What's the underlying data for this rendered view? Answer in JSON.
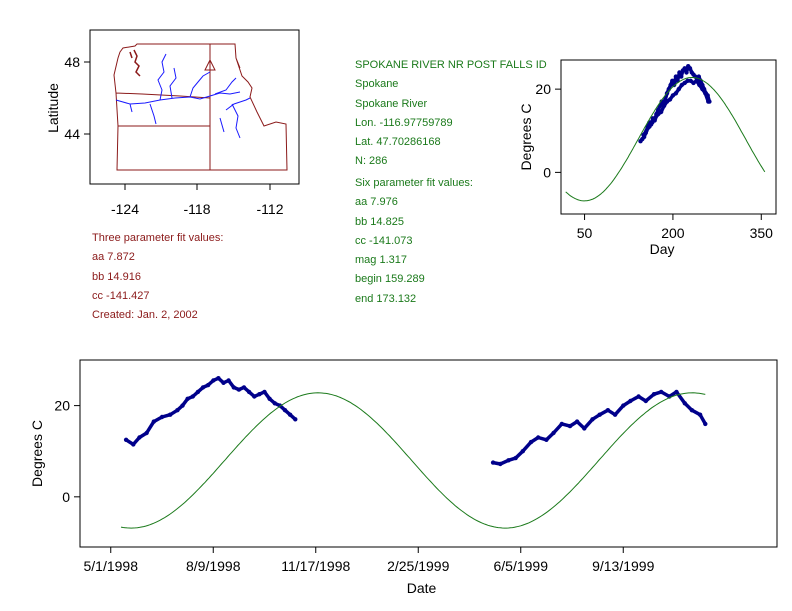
{
  "colors": {
    "axis": "#000000",
    "observed": "#00008b",
    "fit": "#1b7a1b",
    "map_border": "#8b1a1a",
    "map_river": "#1a1aff",
    "green_text": "#1b7a1b",
    "maroon_text": "#8b1a1a"
  },
  "station": {
    "name": "SPOKANE RIVER NR POST FALLS ID",
    "city": "Spokane",
    "river": "Spokane River",
    "lon": "Lon. -116.97759789",
    "lat": "Lat. 47.70286168",
    "n": "N: 286"
  },
  "six_param": {
    "heading": "Six parameter fit values:",
    "aa": "aa 7.976",
    "bb": "bb 14.825",
    "cc": "cc -141.073",
    "mag": "mag 1.317",
    "begin": "begin 159.289",
    "end": "end 173.132"
  },
  "three_param": {
    "heading": "Three parameter fit values:",
    "aa": "aa 7.872",
    "bb": "bb 14.916",
    "cc": "cc -141.427",
    "created": "Created:   Jan. 2, 2002"
  },
  "map": {
    "ylabel": "Latitude",
    "xticks": [
      "-124",
      "-118",
      "-112"
    ],
    "yticks": [
      "48",
      "44"
    ]
  },
  "chart_data": [
    {
      "type": "line",
      "title": "",
      "xlabel": "Day",
      "ylabel": "Degrees C",
      "xlim": [
        10,
        375
      ],
      "ylim": [
        -10,
        27
      ],
      "xticks": [
        50,
        200,
        350
      ],
      "yticks": [
        0,
        20
      ],
      "tick_labels_x": [
        "50",
        "200",
        "350"
      ],
      "tick_labels_y": [
        "0",
        "20"
      ],
      "series": [
        {
          "name": "observed",
          "style": "points",
          "x": [
            145,
            148,
            151,
            154,
            157,
            160,
            163,
            166,
            169,
            172,
            175,
            178,
            181,
            184,
            187,
            190,
            193,
            196,
            199,
            202,
            205,
            208,
            211,
            214,
            217,
            220,
            223,
            226,
            229,
            232,
            235,
            238,
            241,
            244,
            247,
            250,
            253,
            256,
            259,
            262
          ],
          "y": [
            7.5,
            8.0,
            8.5,
            9.5,
            11,
            12,
            11.5,
            13,
            12.5,
            14,
            15,
            16,
            17,
            16.5,
            17.5,
            19,
            20,
            21,
            22,
            21,
            23,
            22,
            24,
            23,
            24.5,
            25,
            24,
            25.5,
            25,
            24,
            23.5,
            23,
            22.5,
            23,
            22,
            21,
            20,
            19,
            18.5,
            17
          ]
        },
        {
          "name": "observed (second year)",
          "style": "points",
          "x": [
            150,
            155,
            160,
            165,
            170,
            175,
            180,
            185,
            190,
            195,
            200,
            205,
            210,
            215,
            220,
            225,
            230,
            235,
            240,
            245,
            250,
            255,
            260
          ],
          "y": [
            9,
            10,
            11,
            12,
            13,
            14,
            14.5,
            16,
            17,
            17.5,
            18.5,
            19,
            20,
            21,
            21.5,
            22,
            22,
            21.5,
            22,
            21,
            20,
            19,
            17
          ]
        },
        {
          "name": "fit",
          "style": "line",
          "params": {
            "aa": 7.976,
            "bb": 14.825,
            "cc": -141.073
          },
          "x_range": [
            18,
            356
          ]
        }
      ]
    },
    {
      "type": "line",
      "title": "",
      "xlabel": "Date",
      "ylabel": "Degrees C",
      "xlim": [
        0,
        680
      ],
      "ylim": [
        -11,
        30
      ],
      "yticks": [
        0,
        20
      ],
      "tick_labels_y": [
        "0",
        "20"
      ],
      "x_epoch": "4/1/1998",
      "xtick_days": [
        30,
        130,
        230,
        330,
        430,
        530
      ],
      "tick_labels_x": [
        "5/1/1998",
        "8/9/1998",
        "11/17/1998",
        "2/25/1999",
        "6/5/1999",
        "9/13/1999"
      ],
      "series": [
        {
          "name": "observed 1998",
          "style": "points",
          "x": [
            45,
            52,
            58,
            65,
            72,
            80,
            88,
            95,
            100,
            105,
            110,
            115,
            120,
            125,
            130,
            135,
            140,
            145,
            150,
            155,
            160,
            165,
            170,
            175,
            180,
            185,
            190,
            195,
            200,
            205,
            210
          ],
          "y": [
            12.5,
            11.5,
            13,
            14,
            16.5,
            17.5,
            18,
            19,
            20,
            21.5,
            22,
            23,
            24,
            24.5,
            25.5,
            26,
            25,
            25.5,
            24,
            23.5,
            24,
            23,
            22,
            22.5,
            23,
            21.5,
            20.5,
            20,
            19,
            18,
            17
          ]
        },
        {
          "name": "observed 1999",
          "style": "points",
          "x": [
            403,
            410,
            418,
            425,
            432,
            440,
            447,
            455,
            462,
            470,
            478,
            485,
            492,
            500,
            507,
            515,
            522,
            530,
            537,
            545,
            552,
            560,
            567,
            575,
            582,
            590,
            597,
            605,
            610
          ],
          "y": [
            7.5,
            7.2,
            8,
            8.5,
            10,
            12,
            13,
            12.5,
            14,
            16,
            15.5,
            16.5,
            15,
            17,
            18,
            19,
            18,
            20,
            21,
            22,
            21,
            22.5,
            23,
            22,
            23,
            20.5,
            19,
            18,
            16
          ]
        },
        {
          "name": "fit",
          "style": "line",
          "params": {
            "aa": 7.976,
            "bb": 14.825,
            "cc": -141.073
          },
          "x_range": [
            40,
            610
          ]
        }
      ]
    }
  ]
}
